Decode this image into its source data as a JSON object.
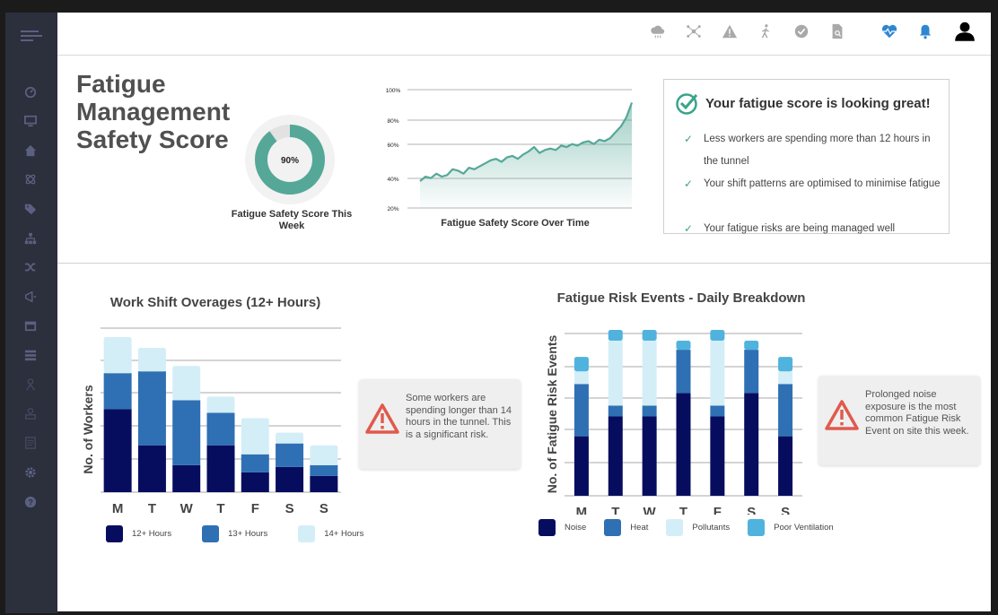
{
  "colors": {
    "sidebar_bg": "#2c2f3c",
    "accent_teal": "#55a898",
    "navy": "#070d5e",
    "mid_blue": "#2f70b4",
    "light_blue": "#d4eef7",
    "sky_blue": "#4fb3de",
    "warning_red": "#e05a4c",
    "heart_blue": "#2f86d0"
  },
  "sidebar": {
    "icons": [
      "menu-icon",
      "dashboard-icon",
      "monitor-icon",
      "home-icon",
      "atom-icon",
      "tags-icon",
      "org-chart-icon",
      "shuffle-icon",
      "bullhorn-icon",
      "calendar-icon",
      "server-icon",
      "worker-icon",
      "user-upload-icon",
      "document-icon",
      "gear-icon",
      "help-icon"
    ]
  },
  "topbar": {
    "icons": [
      "cloud-icon",
      "network-icon",
      "warning-icon",
      "walking-icon",
      "check-circle-icon",
      "document-search-icon",
      "heart-pulse-icon",
      "bell-icon",
      "user-icon"
    ]
  },
  "score": {
    "title": "Fatigue Management Safety Score",
    "percent": 0.9,
    "percent_label": "90%",
    "caption": "Fatigue Safety Score This Week"
  },
  "trend": {
    "caption": "Fatigue Safety Score Over Time",
    "y_ticks": [
      "100%",
      "80%",
      "60%",
      "40%",
      "20%"
    ]
  },
  "tips": {
    "heading": "Your fatigue score is looking great!",
    "items": [
      "Less workers are spending more than 12 hours in the tunnel",
      "Your shift patterns are optimised to minimise fatigue",
      "Your fatigue risks are being managed well"
    ]
  },
  "overages": {
    "title": "Work Shift Overages (12+ Hours)",
    "ylabel": "No. of Workers",
    "callout": "Some workers are spending longer than 14 hours in the tunnel. This is a significant risk.",
    "legend": [
      "12+ Hours",
      "13+ Hours",
      "14+ Hours"
    ]
  },
  "events": {
    "title": "Fatigue Risk Events - Daily Breakdown",
    "ylabel": "No. of Fatigue Risk Events",
    "callout": "Prolonged noise exposure is the most common Fatigue Risk Event on site this week.",
    "legend": [
      "Noise",
      "Heat",
      "Pollutants",
      "Poor Ventilation"
    ]
  },
  "chart_data": [
    {
      "type": "line",
      "caption": "Fatigue Safety Score Over Time",
      "y_ticks": [
        "100%",
        "80%",
        "60%",
        "40%",
        "20%"
      ],
      "ylim": [
        20,
        100
      ],
      "x": [
        0,
        1,
        2,
        3,
        4,
        5,
        6,
        7,
        8,
        9,
        10,
        11,
        12,
        13,
        14,
        15,
        16,
        17,
        18,
        19,
        20,
        21,
        22,
        23,
        24,
        25,
        26,
        27,
        28,
        29,
        30,
        31,
        32,
        33,
        34,
        35,
        36,
        37,
        38,
        39
      ],
      "values": [
        37,
        40,
        39,
        42,
        40,
        41,
        45,
        44,
        42,
        46,
        45,
        47,
        49,
        51,
        52,
        50,
        53,
        54,
        52,
        55,
        57,
        60,
        56,
        58,
        59,
        58,
        61,
        60,
        62,
        61,
        63,
        64,
        62,
        65,
        64,
        66,
        70,
        74,
        80,
        90
      ],
      "area": true,
      "grid": "horizontal"
    },
    {
      "type": "bar",
      "stacked": true,
      "title": "Work Shift Overages (12+ Hours)",
      "ylabel": "No. of Workers",
      "categories": [
        "M",
        "T",
        "W",
        "T",
        "F",
        "S",
        "S"
      ],
      "ylim": [
        0,
        8.5
      ],
      "grid": "horizontal",
      "series": [
        {
          "name": "12+ Hours",
          "values": [
            4.6,
            2.6,
            1.5,
            2.6,
            1.1,
            1.4,
            0.9
          ]
        },
        {
          "name": "13+ Hours",
          "values": [
            2.0,
            4.1,
            3.6,
            1.8,
            1.0,
            1.3,
            0.6
          ]
        },
        {
          "name": "14+ Hours",
          "values": [
            2.0,
            1.3,
            1.9,
            0.9,
            2.0,
            0.6,
            1.1
          ]
        }
      ],
      "legend_position": "bottom"
    },
    {
      "type": "bar",
      "stacked": true,
      "title": "Fatigue Risk Events - Daily Breakdown",
      "ylabel": "No. of Fatigue Risk Events",
      "categories": [
        "M",
        "T",
        "W",
        "T",
        "F",
        "S",
        "S"
      ],
      "ylim": [
        0,
        9
      ],
      "grid": "horizontal",
      "series": [
        {
          "name": "Noise",
          "values": [
            3.3,
            4.4,
            4.4,
            5.7,
            4.4,
            5.7,
            3.3
          ]
        },
        {
          "name": "Heat",
          "values": [
            2.9,
            0.6,
            0.6,
            2.4,
            0.6,
            2.4,
            2.9
          ]
        },
        {
          "name": "Pollutants",
          "values": [
            0.7,
            3.6,
            3.6,
            0.0,
            3.6,
            0.0,
            0.7
          ]
        },
        {
          "name": "Poor Ventilation",
          "values": [
            0.8,
            0.6,
            0.6,
            0.5,
            0.6,
            0.5,
            0.8
          ]
        }
      ],
      "legend_position": "bottom"
    }
  ]
}
